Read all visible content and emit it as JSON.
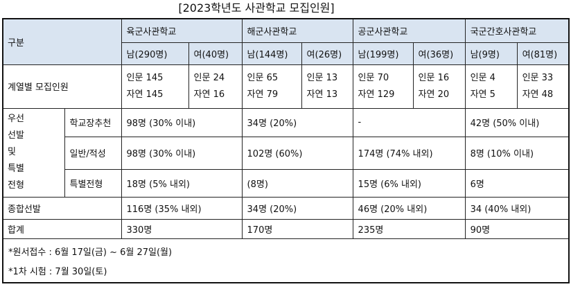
{
  "title": "[2023학년도 사관학교 모집인원]",
  "header": {
    "category_label": "구분",
    "schools": [
      {
        "name": "육군사관학교",
        "male": "남(290명)",
        "female": "여(40명)"
      },
      {
        "name": "해군사관학교",
        "male": "남(144명)",
        "female": "여(26명)"
      },
      {
        "name": "공군사관학교",
        "male": "남(199명)",
        "female": "여(36명)"
      },
      {
        "name": "국군간호사관학교",
        "male": "남(9명)",
        "female": "여(81명)"
      }
    ]
  },
  "track_row": {
    "label": "계열별 모집인원",
    "cells": [
      {
        "line1": "인문 145",
        "line2": "자연 145"
      },
      {
        "line1": "인문 24",
        "line2": "자연 16"
      },
      {
        "line1": "인문 65",
        "line2": "자연 79"
      },
      {
        "line1": "인문 13",
        "line2": "자연 13"
      },
      {
        "line1": "인문 70",
        "line2": "자연 129"
      },
      {
        "line1": "인문 16",
        "line2": "자연 20"
      },
      {
        "line1": "인문 4",
        "line2": "자연 5"
      },
      {
        "line1": "인문 33",
        "line2": "자연 48"
      }
    ]
  },
  "priority_group": {
    "label_lines": [
      "우선",
      "선발",
      "및",
      "특별",
      "전형"
    ],
    "rows": [
      {
        "label": "학교장추천",
        "values": [
          "98명 (30% 이내)",
          "34명 (20%)",
          "-",
          "42명 (50% 이내)"
        ]
      },
      {
        "label": "일반/적성",
        "values": [
          "98명 (30% 이내)",
          "102명 (60%)",
          "174명 (74% 내외)",
          "8명 (10% 이내)"
        ]
      },
      {
        "label": "특별전형",
        "values": [
          "18명 (5% 내외)",
          "(8명)",
          "15명 (6% 내외)",
          "6명"
        ]
      }
    ]
  },
  "comprehensive_row": {
    "label": "종합선발",
    "values": [
      "116명 (35% 내외)",
      "34명 (20%)",
      "46명 (20% 내외)",
      "34 (40% 내외)"
    ]
  },
  "total_row": {
    "label": "합계",
    "values": [
      "330명",
      "170명",
      "235명",
      "90명"
    ]
  },
  "notes": [
    "*원서접수 : 6월 17일(금) ~ 6월 27일(월)",
    "*1차 시험 : 7월 30일(토)"
  ],
  "colors": {
    "header_shade": "#d9e4f1",
    "border": "#222222"
  }
}
